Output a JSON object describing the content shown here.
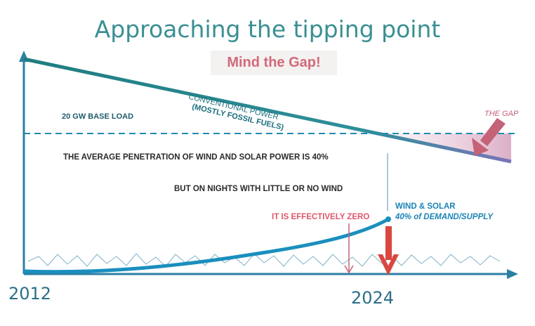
{
  "title": "Approaching the tipping point",
  "subtitle": "Mind the Gap!",
  "labels": {
    "base_load": "20 GW   BASE LOAD",
    "the_gap": "THE GAP",
    "conventional_line1": "CONVENTIONAL POWER",
    "conventional_line2": "(MOSTLY FOSSIL FUELS)",
    "average_penetration": "THE AVERAGE PENETRATION OF WIND AND SOLAR POWER IS 40%",
    "nights": "BUT ON NIGHTS WITH LITTLE OR NO WIND",
    "effectively_zero": "IT IS EFFECTIVELY ZERO",
    "wind_solar": "WIND & SOLAR",
    "demand_supply": "40% of DEMAND/SUPPLY"
  },
  "axis": {
    "start_year": "2012",
    "end_year": "2024"
  },
  "colors": {
    "title": "#3a8f93",
    "subtitle": "#d16a78",
    "conventional_line": "#2a7f86",
    "base_load_line": "#1f8cb2",
    "renewables_curve": "#1a8fbe",
    "gap_fill": "#e9c6d6",
    "drop_arrow": "#d9473f"
  }
}
